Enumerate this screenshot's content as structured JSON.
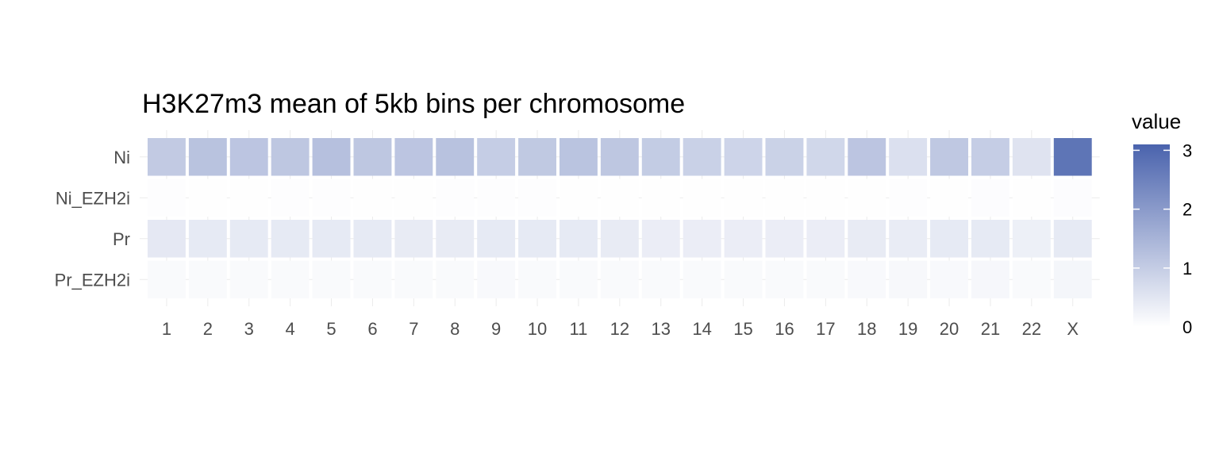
{
  "chart_data": {
    "type": "heatmap",
    "title": "H3K27m3 mean of 5kb bins per chromosome",
    "xlabel": "",
    "ylabel": "",
    "x_categories": [
      "1",
      "2",
      "3",
      "4",
      "5",
      "6",
      "7",
      "8",
      "9",
      "10",
      "11",
      "12",
      "13",
      "14",
      "15",
      "16",
      "17",
      "18",
      "19",
      "20",
      "21",
      "22",
      "X"
    ],
    "y_categories": [
      "Ni",
      "Ni_EZH2i",
      "Pr",
      "Pr_EZH2i"
    ],
    "values": [
      [
        1.05,
        1.2,
        1.15,
        1.12,
        1.25,
        1.12,
        1.15,
        1.22,
        1.0,
        1.08,
        1.18,
        1.12,
        1.02,
        0.92,
        0.85,
        0.9,
        0.8,
        1.15,
        0.62,
        1.1,
        1.0,
        0.55,
        2.75
      ],
      [
        0.03,
        0.02,
        0.02,
        0.03,
        0.04,
        0.02,
        0.02,
        0.03,
        0.03,
        0.03,
        0.02,
        0.02,
        0.02,
        0.02,
        0.02,
        0.02,
        0.02,
        0.02,
        0.03,
        0.02,
        0.05,
        0.02,
        0.05
      ],
      [
        0.45,
        0.42,
        0.42,
        0.42,
        0.42,
        0.42,
        0.4,
        0.4,
        0.42,
        0.42,
        0.42,
        0.4,
        0.35,
        0.35,
        0.35,
        0.35,
        0.35,
        0.4,
        0.38,
        0.42,
        0.42,
        0.3,
        0.42
      ],
      [
        0.1,
        0.1,
        0.1,
        0.1,
        0.1,
        0.1,
        0.1,
        0.1,
        0.12,
        0.1,
        0.1,
        0.1,
        0.1,
        0.1,
        0.1,
        0.1,
        0.1,
        0.12,
        0.14,
        0.12,
        0.15,
        0.1,
        0.18
      ]
    ],
    "legend": {
      "title": "value",
      "placement": "right",
      "ticks": [
        0,
        1,
        2,
        3
      ],
      "range": [
        0,
        3.1
      ],
      "low_color": "#ffffff",
      "high_color": "#4a63ad"
    },
    "grid": true
  }
}
